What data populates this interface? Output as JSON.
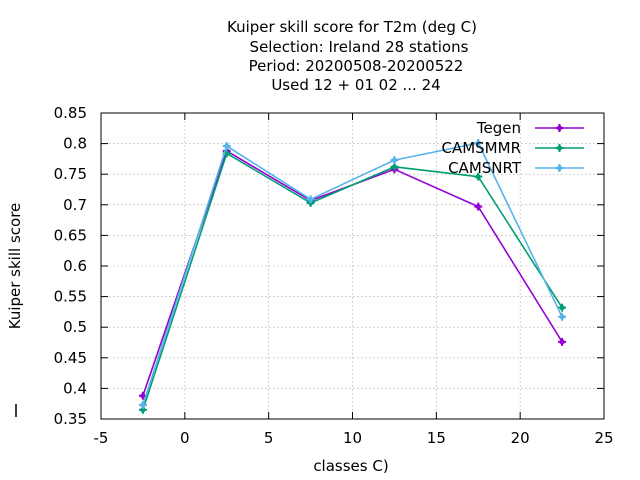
{
  "chart_data": {
    "type": "line",
    "title_lines": [
      "Kuiper skill score  for T2m (deg C)",
      "Selection: Ireland     28 stations",
      "Period: 20200508-20200522",
      "Used  12 + 01 02 ... 24"
    ],
    "xlabel": "classes C)",
    "ylabel": "Kuiper skill score",
    "xlim": [
      -5,
      25
    ],
    "ylim": [
      0.35,
      0.85
    ],
    "xticks": [
      -5,
      0,
      5,
      10,
      15,
      20,
      25
    ],
    "yticks": [
      0.35,
      0.4,
      0.45,
      0.5,
      0.55,
      0.6,
      0.65,
      0.7,
      0.75,
      0.8,
      0.85
    ],
    "ytick_labels": [
      "0.35",
      "0.4",
      "0.45",
      "0.5",
      "0.55",
      "0.6",
      "0.65",
      "0.7",
      "0.75",
      "0.8",
      "0.85"
    ],
    "grid": true,
    "legend_position": "top-right",
    "x": [
      -2.5,
      2.5,
      7.5,
      12.5,
      17.5,
      22.5
    ],
    "series": [
      {
        "name": "Tegen",
        "color": "#9400d3",
        "values": [
          0.388,
          0.788,
          0.707,
          0.758,
          0.697,
          0.476
        ]
      },
      {
        "name": "CAMSMMR",
        "color": "#009e73",
        "values": [
          0.365,
          0.784,
          0.703,
          0.762,
          0.746,
          0.532
        ]
      },
      {
        "name": "CAMSNRT",
        "color": "#56b4e9",
        "values": [
          0.373,
          0.796,
          0.709,
          0.773,
          0.801,
          0.517
        ]
      }
    ]
  }
}
